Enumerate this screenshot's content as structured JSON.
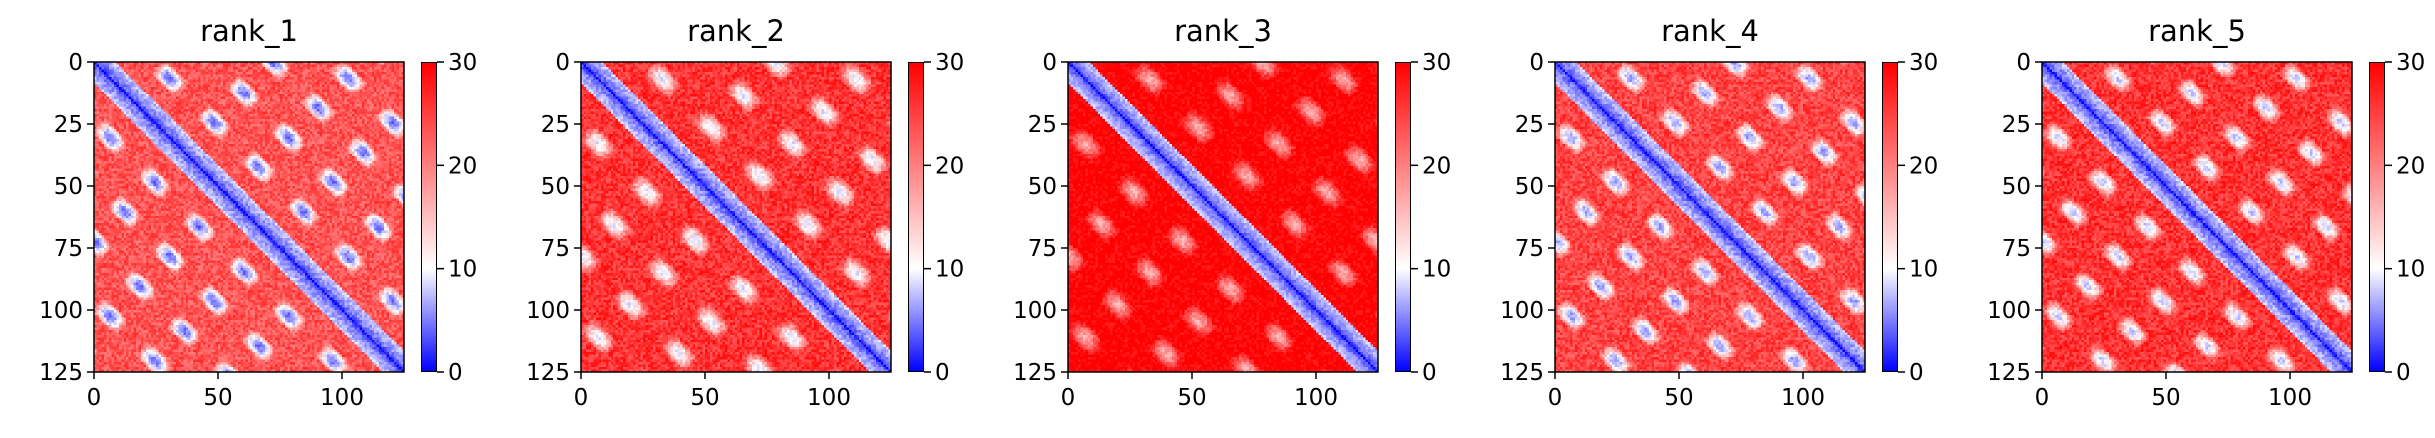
{
  "chart_data": [
    {
      "type": "heatmap",
      "title": "rank_1",
      "matrix_size": 125,
      "x_ticks": [
        "0",
        "50",
        "100"
      ],
      "y_ticks": [
        "0",
        "25",
        "50",
        "75",
        "100",
        "125"
      ],
      "x_tick_values": [
        0,
        50,
        100
      ],
      "y_tick_values": [
        0,
        25,
        50,
        75,
        100,
        125
      ],
      "colorbar": {
        "min": 0,
        "max": 30,
        "ticks": [
          "0",
          "10",
          "20",
          "30"
        ],
        "tick_values": [
          0,
          10,
          20,
          30
        ],
        "colormap": "bwr"
      },
      "colors": {
        "low": "#0000ff",
        "mid": "#ffffff",
        "high": "#ff0000"
      }
    },
    {
      "type": "heatmap",
      "title": "rank_2",
      "matrix_size": 125,
      "x_ticks": [
        "0",
        "50",
        "100"
      ],
      "y_ticks": [
        "0",
        "25",
        "50",
        "75",
        "100",
        "125"
      ],
      "x_tick_values": [
        0,
        50,
        100
      ],
      "y_tick_values": [
        0,
        25,
        50,
        75,
        100,
        125
      ],
      "colorbar": {
        "min": 0,
        "max": 30,
        "ticks": [
          "0",
          "10",
          "20",
          "30"
        ],
        "tick_values": [
          0,
          10,
          20,
          30
        ],
        "colormap": "bwr"
      },
      "colors": {
        "low": "#0000ff",
        "mid": "#ffffff",
        "high": "#ff0000"
      }
    },
    {
      "type": "heatmap",
      "title": "rank_3",
      "matrix_size": 125,
      "x_ticks": [
        "0",
        "50",
        "100"
      ],
      "y_ticks": [
        "0",
        "25",
        "50",
        "75",
        "100",
        "125"
      ],
      "x_tick_values": [
        0,
        50,
        100
      ],
      "y_tick_values": [
        0,
        25,
        50,
        75,
        100,
        125
      ],
      "colorbar": {
        "min": 0,
        "max": 30,
        "ticks": [
          "0",
          "10",
          "20",
          "30"
        ],
        "tick_values": [
          0,
          10,
          20,
          30
        ],
        "colormap": "bwr"
      },
      "colors": {
        "low": "#0000ff",
        "mid": "#ffffff",
        "high": "#ff0000"
      }
    },
    {
      "type": "heatmap",
      "title": "rank_4",
      "matrix_size": 125,
      "x_ticks": [
        "0",
        "50",
        "100"
      ],
      "y_ticks": [
        "0",
        "25",
        "50",
        "75",
        "100",
        "125"
      ],
      "x_tick_values": [
        0,
        50,
        100
      ],
      "y_tick_values": [
        0,
        25,
        50,
        75,
        100,
        125
      ],
      "colorbar": {
        "min": 0,
        "max": 30,
        "ticks": [
          "0",
          "10",
          "20",
          "30"
        ],
        "tick_values": [
          0,
          10,
          20,
          30
        ],
        "colormap": "bwr"
      },
      "colors": {
        "low": "#0000ff",
        "mid": "#ffffff",
        "high": "#ff0000"
      }
    },
    {
      "type": "heatmap",
      "title": "rank_5",
      "matrix_size": 125,
      "x_ticks": [
        "0",
        "50",
        "100"
      ],
      "y_ticks": [
        "0",
        "25",
        "50",
        "75",
        "100",
        "125"
      ],
      "x_tick_values": [
        0,
        50,
        100
      ],
      "y_tick_values": [
        0,
        25,
        50,
        75,
        100,
        125
      ],
      "colorbar": {
        "min": 0,
        "max": 30,
        "ticks": [
          "0",
          "10",
          "20",
          "30"
        ],
        "tick_values": [
          0,
          10,
          20,
          30
        ],
        "colormap": "bwr"
      },
      "colors": {
        "low": "#0000ff",
        "mid": "#ffffff",
        "high": "#ff0000"
      }
    }
  ]
}
